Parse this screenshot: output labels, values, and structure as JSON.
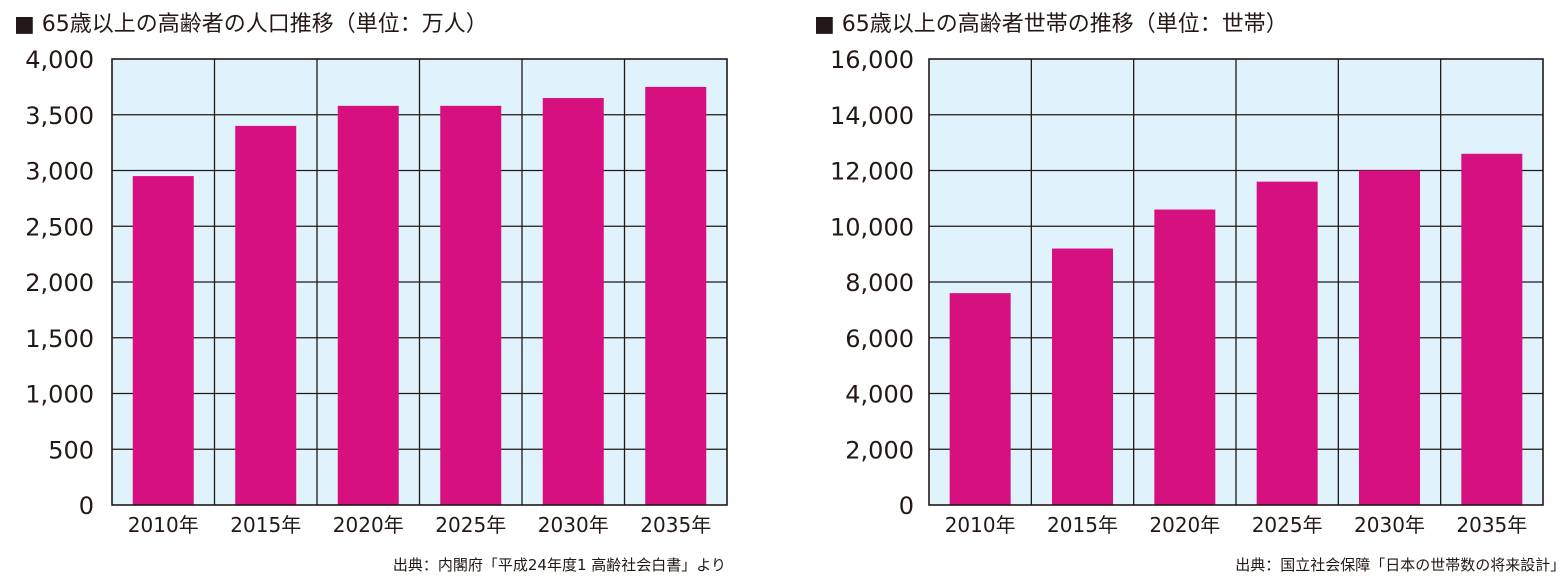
{
  "chart_data": [
    {
      "type": "bar",
      "title": "■ 65歳以上の高齢者の人口推移（単位：万人）",
      "categories": [
        "2010年",
        "2015年",
        "2020年",
        "2025年",
        "2030年",
        "2035年"
      ],
      "values": [
        2950,
        3400,
        3580,
        3580,
        3650,
        3750
      ],
      "ylim": [
        0,
        4000
      ],
      "yticks": [
        "0",
        "500",
        "1,000",
        "1,500",
        "2,000",
        "2,500",
        "3,000",
        "3,500",
        "4,000"
      ],
      "grid": true,
      "bar_color": "#d6107f",
      "plot_bg": "#e0f3fc",
      "source": "出典：内閣府「平成24年度1 高齢社会白書」より"
    },
    {
      "type": "bar",
      "title": "■ 65歳以上の高齢者世帯の推移（単位：世帯）",
      "categories": [
        "2010年",
        "2015年",
        "2020年",
        "2025年",
        "2030年",
        "2035年"
      ],
      "values": [
        7600,
        9200,
        10600,
        11600,
        12000,
        12600
      ],
      "ylim": [
        0,
        16000
      ],
      "yticks": [
        "0",
        "2,000",
        "4,000",
        "6,000",
        "8,000",
        "10,000",
        "12,000",
        "14,000",
        "16,000"
      ],
      "grid": true,
      "bar_color": "#d6107f",
      "plot_bg": "#e0f3fc",
      "source": "出典：国立社会保障「日本の世帯数の将来設計」より"
    }
  ]
}
